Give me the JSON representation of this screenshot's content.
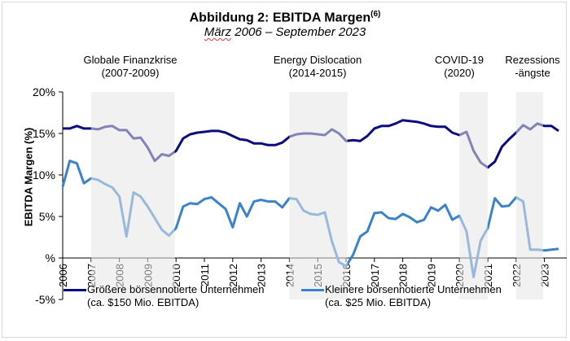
{
  "title": "Abbildung 2: EBITDA Margen",
  "title_superscript": "(6)",
  "subtitle_first": "März",
  "subtitle_rest": " 2006 – September 2023",
  "chart_data": {
    "type": "line",
    "title": "Abbildung 2: EBITDA Margen(6)",
    "subtitle": "März 2006 – September 2023",
    "xlabel": "",
    "ylabel": "EBITDA Margen (%)",
    "ylim": [
      -5,
      20
    ],
    "yticks": [
      20,
      15,
      10,
      5,
      0,
      -5
    ],
    "ytick_labels": [
      "20%",
      "15%",
      "10%",
      "5%",
      "%",
      "-5%"
    ],
    "x_start": "2006 Q1",
    "x_frequency": "quarterly",
    "xticks": [
      "2006",
      "2007",
      "2008",
      "2009",
      "2010",
      "2011",
      "2012",
      "2013",
      "2014",
      "2015",
      "2016",
      "2017",
      "2018",
      "2019",
      "2020",
      "2021",
      "2022",
      "2023"
    ],
    "xlim": [
      2006.0,
      2023.5
    ],
    "grid": false,
    "legend_position": "bottom",
    "shaded_periods": [
      {
        "label_line1": "Globale Finanzkrise",
        "label_line2": "(2007-2009)",
        "start": 2007.0,
        "end": 2009.95
      },
      {
        "label_line1": "Energy Dislocation",
        "label_line2": "(2014-2015)",
        "start": 2014.0,
        "end": 2016.05
      },
      {
        "label_line1": "COVID-19",
        "label_line2": "(2020)",
        "start": 2020.0,
        "end": 2021.0
      },
      {
        "label_line1": "Rezessions",
        "label_line2": "-ängste",
        "start": 2022.0,
        "end": 2022.95
      }
    ],
    "series": [
      {
        "name": "Größere börsennotierte Unternehmen",
        "name_line2": "(ca. $150 Mio. EBITDA)",
        "color": "#0b0c7d",
        "values": [
          15.6,
          15.6,
          15.9,
          15.6,
          15.6,
          15.5,
          15.8,
          15.9,
          15.4,
          15.4,
          14.4,
          14.5,
          13.3,
          11.7,
          12.5,
          12.3,
          12.9,
          14.4,
          14.9,
          15.1,
          15.2,
          15.3,
          15.3,
          15.1,
          14.7,
          14.3,
          14.2,
          13.8,
          13.8,
          13.6,
          13.6,
          13.9,
          14.6,
          14.9,
          15.0,
          15.0,
          14.9,
          14.8,
          15.5,
          15.0,
          14.1,
          14.2,
          14.1,
          14.7,
          15.6,
          15.9,
          15.9,
          16.2,
          16.6,
          16.5,
          16.4,
          16.2,
          15.9,
          15.8,
          15.8,
          15.1,
          14.8,
          15.2,
          12.9,
          11.5,
          10.9,
          11.6,
          13.4,
          14.3,
          15.1,
          16.0,
          15.5,
          16.2,
          15.9,
          15.9,
          15.3
        ]
      },
      {
        "name": "Kleinere börsennotierte Unternehmen",
        "name_line2": "(ca. $25 Mio. EBITDA)",
        "color": "#3a83c9",
        "values": [
          8.6,
          11.7,
          11.4,
          9.0,
          9.6,
          9.4,
          8.9,
          8.5,
          7.4,
          2.6,
          7.9,
          7.4,
          6.2,
          4.8,
          3.4,
          2.7,
          3.6,
          6.2,
          6.6,
          6.5,
          7.1,
          7.3,
          6.6,
          5.9,
          3.7,
          6.6,
          5.0,
          6.8,
          7.0,
          6.8,
          6.8,
          6.1,
          7.2,
          7.1,
          5.7,
          5.3,
          5.2,
          5.5,
          2.0,
          -0.5,
          -1.0,
          0.4,
          2.6,
          3.2,
          5.4,
          5.5,
          4.8,
          4.7,
          5.3,
          4.9,
          4.3,
          4.6,
          6.1,
          5.7,
          6.4,
          4.6,
          5.1,
          3.2,
          -2.3,
          2.1,
          3.6,
          7.2,
          6.2,
          6.3,
          7.3,
          6.8,
          1.0,
          1.0,
          0.9,
          1.0,
          1.1
        ]
      }
    ]
  }
}
